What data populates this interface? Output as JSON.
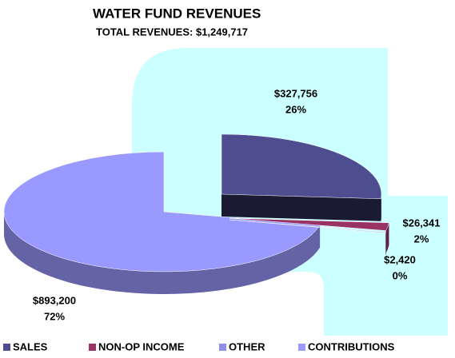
{
  "chart_data": {
    "type": "pie",
    "title": "WATER FUND REVENUES",
    "subtitle": "TOTAL REVENUES: $1,249,717",
    "categories": [
      "SALES",
      "NON-OP INCOME",
      "OTHER",
      "CONTRIBUTIONS"
    ],
    "values": [
      327756,
      26341,
      2420,
      893200
    ],
    "value_labels": [
      "$327,756",
      "$26,341",
      "$2,420",
      "$893,200"
    ],
    "percent_labels": [
      "26%",
      "2%",
      "0%",
      "72%"
    ],
    "colors": [
      "#4d4d8f",
      "#993366",
      "#8f8fe8",
      "#9999ff"
    ],
    "legend": "bottom"
  }
}
